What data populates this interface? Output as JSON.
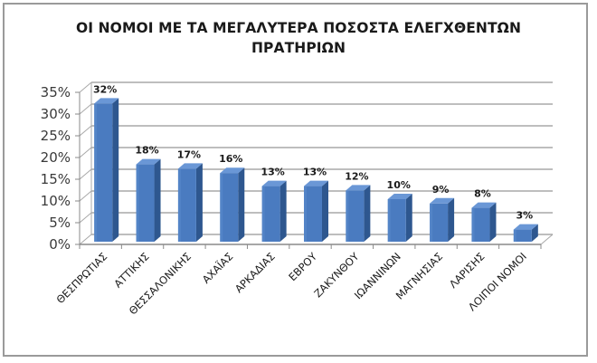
{
  "chart_data": {
    "type": "bar",
    "style": "3d-column",
    "title": "ΟΙ ΝΟΜΟΙ ΜΕ ΤΑ ΜΕΓΑΛΥΤΕΡΑ ΠΟΣΟΣΤΑ ΕΛΕΓΧΘΕΝΤΩΝ ΠΡΑΤΗΡΙΩΝ",
    "title_lines": [
      "ΟΙ ΝΟΜΟΙ ΜΕ ΤΑ ΜΕΓΑΛΥΤΕΡΑ ΠΟΣΟΣΤΑ ΕΛΕΓΧΘΕΝΤΩΝ",
      "ΠΡΑΤΗΡΙΩΝ"
    ],
    "xlabel": "",
    "ylabel": "",
    "categories": [
      "ΘΕΣΠΡΩΤΙΑΣ",
      "ΑΤΤΙΚΗΣ",
      "ΘΕΣΣΑΛΟΝΙΚΗΣ",
      "ΑΧΑΪΑΣ",
      "ΑΡΚΑΔΙΑΣ",
      "ΕΒΡΟΥ",
      "ΖΑΚΥΝΘΟΥ",
      "ΙΩΑΝΝΙΝΩΝ",
      "ΜΑΓΝΗΣΙΑΣ",
      "ΛΑΡΙΣΗΣ",
      "ΛΟΙΠΟΙ ΝΟΜΟΙ"
    ],
    "values": [
      32,
      18,
      17,
      16,
      13,
      13,
      12,
      10,
      9,
      8,
      3
    ],
    "data_labels": [
      "32%",
      "18%",
      "17%",
      "16%",
      "13%",
      "13%",
      "12%",
      "10%",
      "9%",
      "8%",
      "3%"
    ],
    "yticks": [
      "0%",
      "5%",
      "10%",
      "15%",
      "20%",
      "25%",
      "30%",
      "35%"
    ],
    "ylim": [
      0,
      35
    ],
    "grid": true,
    "legend": null,
    "colors": {
      "bar_front": "#4a7bc0",
      "bar_side": "#2e578f",
      "bar_top": "#6a97d6",
      "grid": "#a8a8a8",
      "frame": "#9a9a9a"
    }
  }
}
